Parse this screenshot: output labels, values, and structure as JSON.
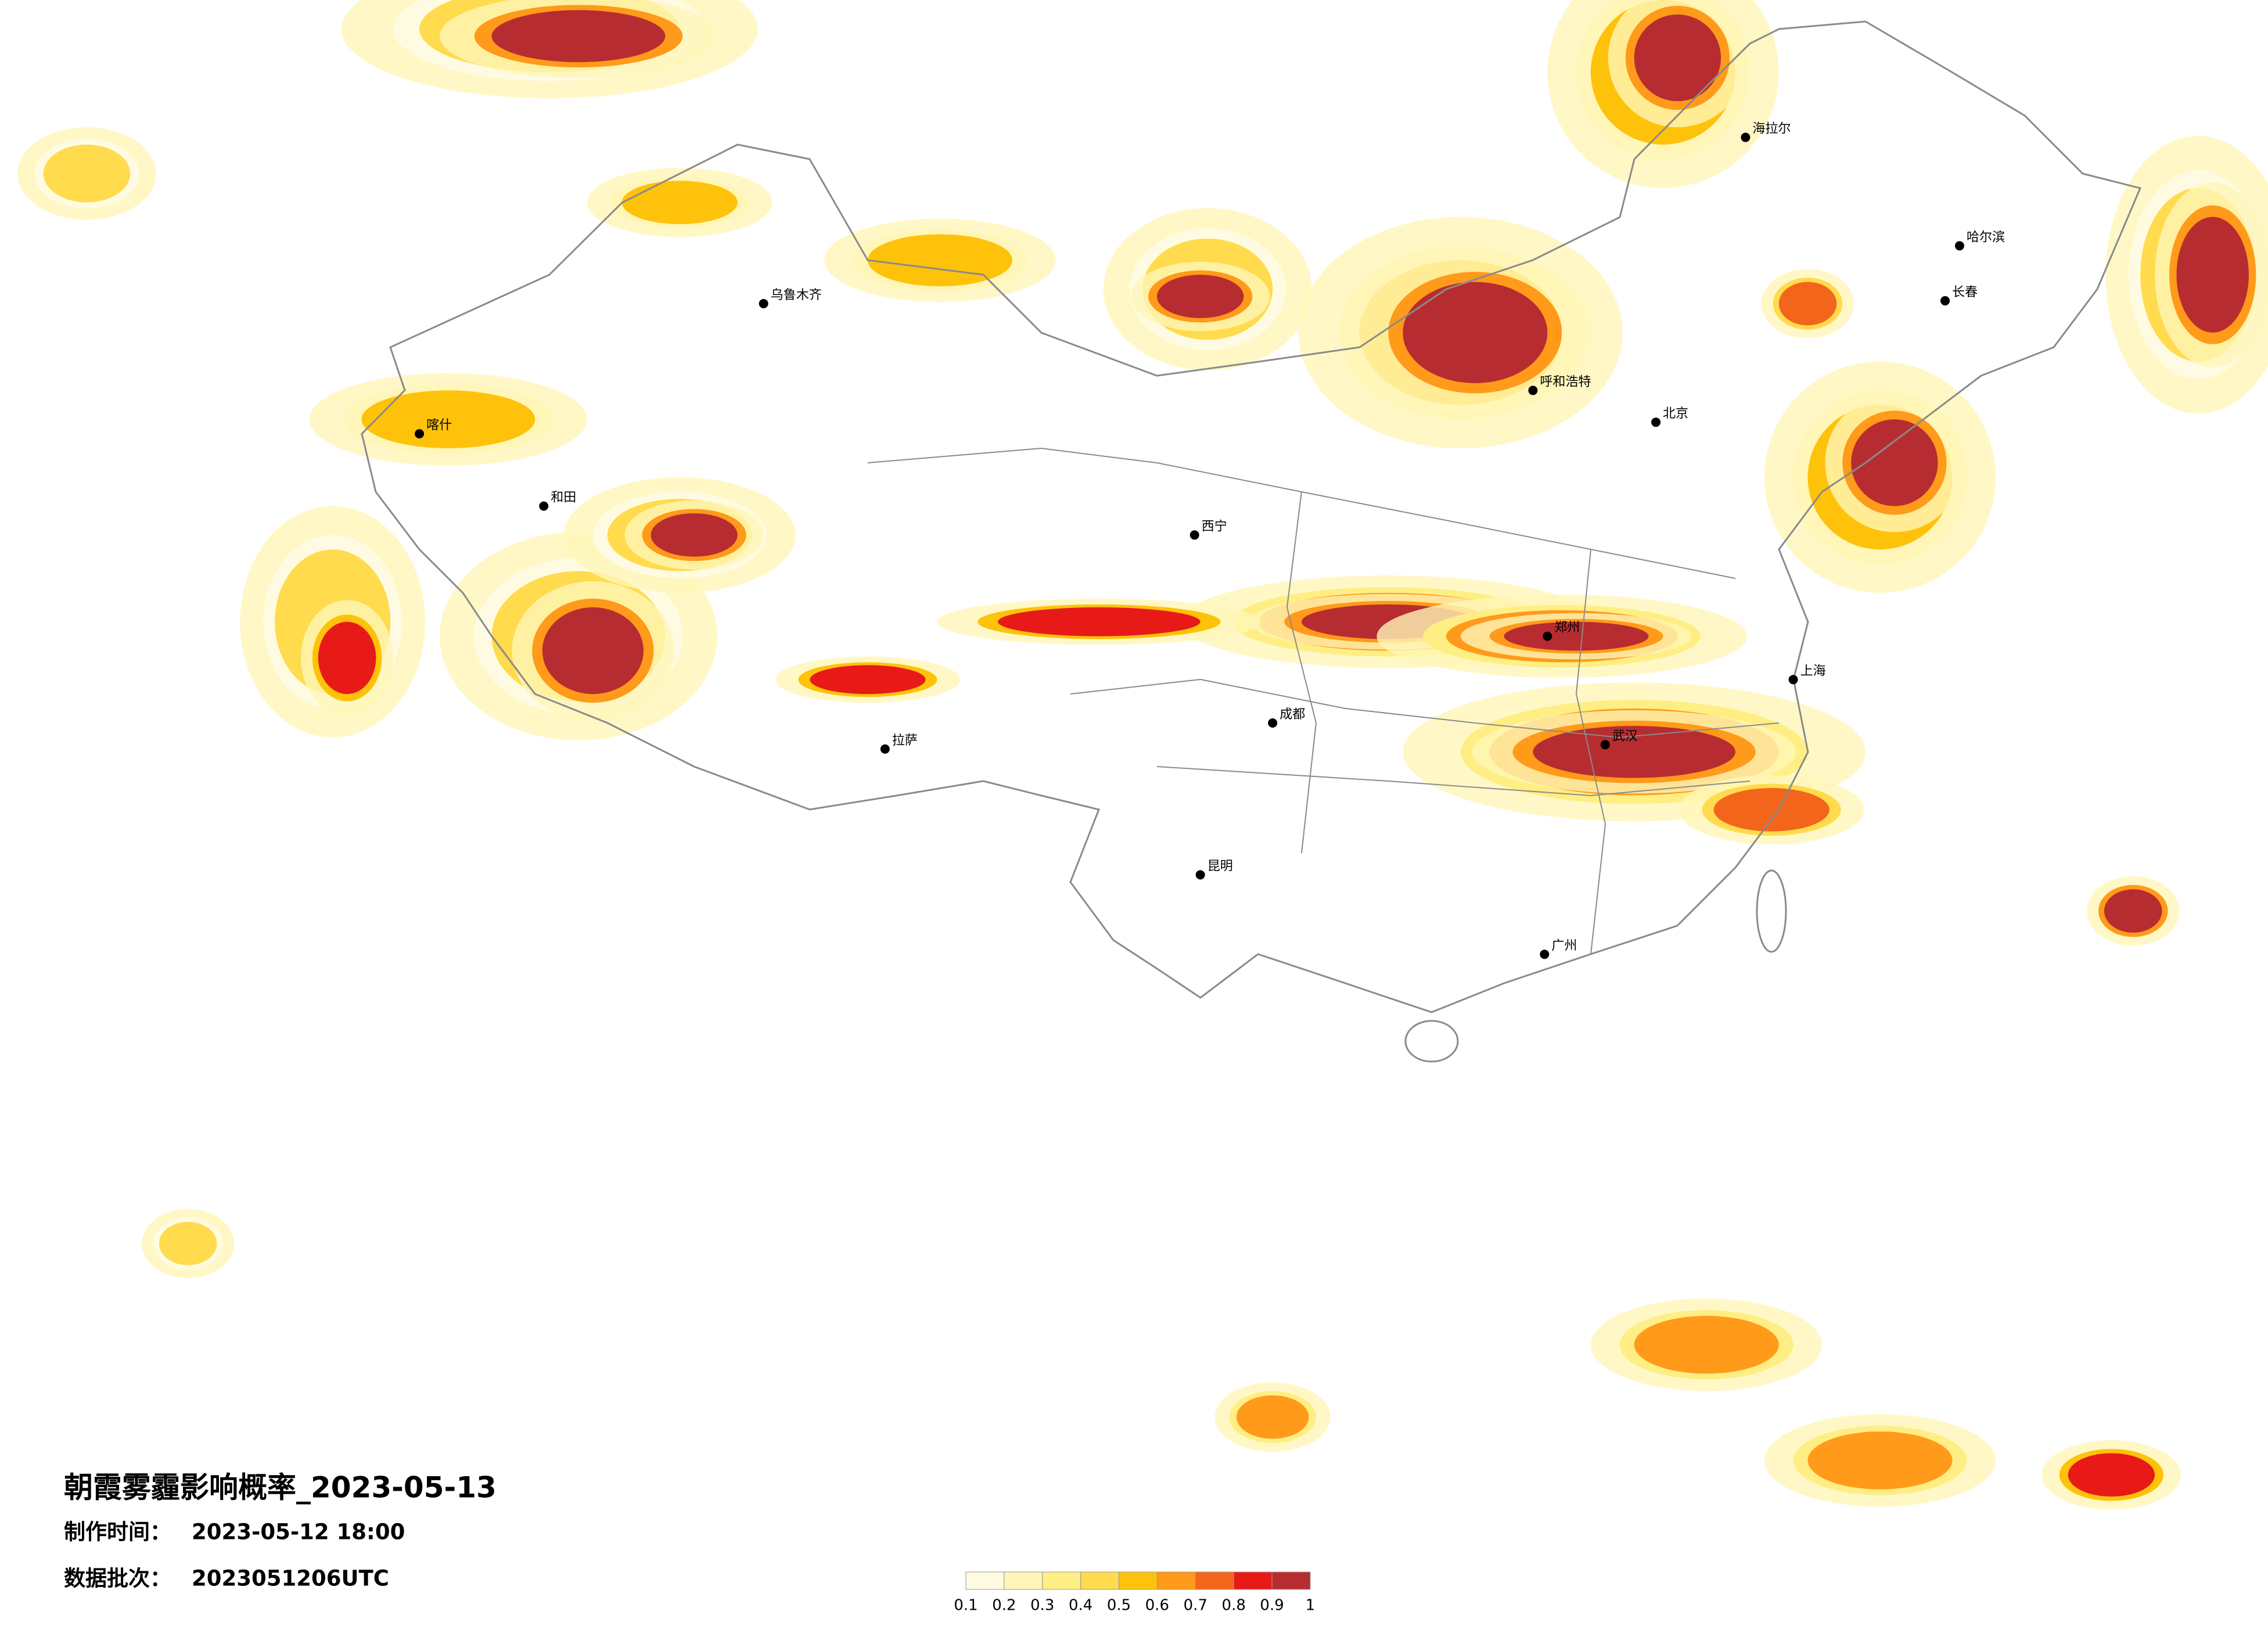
{
  "title": "朝霞雾霾影响概率_2023-05-13",
  "made_time": {
    "label": "制作时间：",
    "value": "2023-05-12 18:00"
  },
  "batch": {
    "label": "数据批次：",
    "value": "2023051206UTC"
  },
  "legend": {
    "colors": [
      "#fffbe3",
      "#fff6b8",
      "#ffee84",
      "#ffdb4d",
      "#ffc20a",
      "#ff9a1a",
      "#f3651a",
      "#e81a18",
      "#b72c30"
    ],
    "ticks": [
      0.1,
      0.2,
      0.3,
      0.4,
      0.5,
      0.6,
      0.7,
      0.8,
      0.9,
      1
    ]
  },
  "cities": [
    "北京",
    "哈尔滨",
    "乌鲁木齐",
    "拉萨",
    "西宁",
    "海拉尔",
    "和田",
    "长春",
    "上海",
    "广州",
    "昆明",
    "成都",
    "郑州",
    "武汉",
    "呼和浩特",
    "喀什"
  ]
}
